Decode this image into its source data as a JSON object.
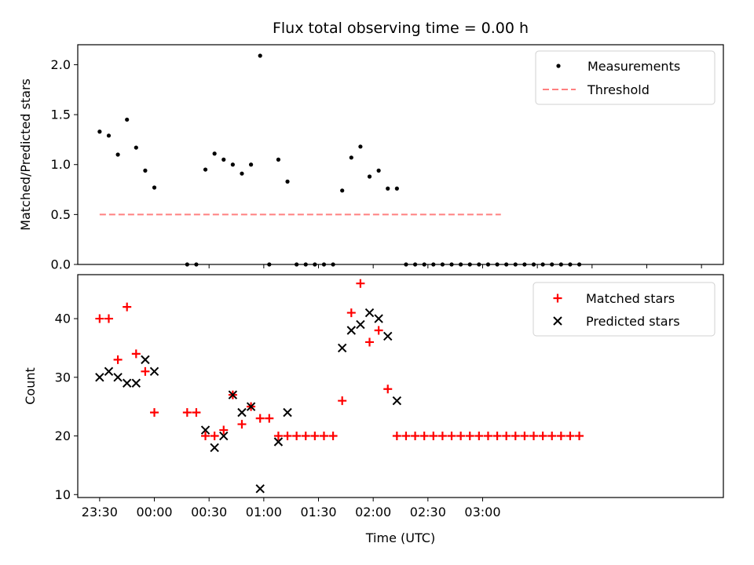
{
  "chart_data": [
    {
      "type": "scatter",
      "title": "Flux total observing time = 0.00 h",
      "xlabel": "",
      "ylabel": "Matched/Predicted stars",
      "xlim": [
        -42,
        312
      ],
      "ylim": [
        0,
        2.2
      ],
      "yticks": [
        0.0,
        0.5,
        1.0,
        1.5,
        2.0
      ],
      "ytick_labels": [
        "0.0",
        "0.5",
        "1.0",
        "1.5",
        "2.0"
      ],
      "xticks_minutes": [
        30,
        60,
        90,
        120,
        150,
        180,
        210,
        240,
        270,
        300
      ],
      "legend_position": "top-right",
      "colors": {
        "measurements": "#000000",
        "threshold": "#ff8080"
      },
      "series": [
        {
          "name": "Measurements",
          "x_minutes": [
            -30,
            -25,
            -20,
            -15,
            -10,
            -5,
            0,
            18,
            23,
            28,
            33,
            38,
            43,
            48,
            53,
            58,
            63,
            68,
            73,
            78,
            83,
            88,
            93,
            98,
            103,
            108,
            113,
            118,
            123,
            128,
            133,
            138,
            143,
            148,
            153,
            158,
            163,
            168,
            173,
            178,
            183,
            188,
            193,
            198,
            203,
            208,
            213,
            218,
            223,
            228,
            233
          ],
          "values": [
            1.33,
            1.29,
            1.1,
            1.45,
            1.17,
            0.94,
            0.77,
            0.0,
            0.0,
            0.95,
            1.11,
            1.05,
            1.0,
            0.91,
            1.0,
            2.09,
            0.0,
            1.05,
            0.83,
            0.0,
            0.0,
            0.0,
            0.0,
            0.0,
            0.74,
            1.07,
            1.18,
            0.88,
            0.94,
            0.76,
            0.76,
            0.0,
            0.0,
            0.0,
            0.0,
            0.0,
            0.0,
            0.0,
            0.0,
            0.0,
            0.0,
            0.0,
            0.0,
            0.0,
            0.0,
            0.0,
            0.0,
            0.0,
            0.0,
            0.0,
            0.0
          ]
        },
        {
          "name": "Threshold",
          "x_minutes": [
            -30,
            190
          ],
          "values": [
            0.5,
            0.5
          ]
        }
      ]
    },
    {
      "type": "scatter",
      "title": "",
      "xlabel": "Time (UTC)",
      "ylabel": "Count",
      "xlim": [
        -42,
        312
      ],
      "ylim": [
        9.5,
        47.5
      ],
      "yticks": [
        10,
        20,
        30,
        40
      ],
      "ytick_labels": [
        "10",
        "20",
        "30",
        "40"
      ],
      "xticks_minutes": [
        -30,
        0,
        30,
        60,
        90,
        120,
        150,
        180
      ],
      "xtick_labels": [
        "23:30",
        "00:00",
        "00:30",
        "01:00",
        "01:30",
        "02:00",
        "02:30",
        "03:00"
      ],
      "legend_position": "top-right",
      "colors": {
        "matched": "#ff0000",
        "predicted": "#000000"
      },
      "series": [
        {
          "name": "Matched stars",
          "x_minutes": [
            -30,
            -25,
            -20,
            -15,
            -10,
            -5,
            0,
            18,
            23,
            28,
            33,
            38,
            43,
            48,
            53,
            58,
            63,
            68,
            73,
            78,
            83,
            88,
            93,
            98,
            103,
            108,
            113,
            118,
            123,
            128,
            133,
            138,
            143,
            148,
            153,
            158,
            163,
            168,
            173,
            178,
            183,
            188,
            193,
            198,
            203,
            208,
            213,
            218,
            223,
            228,
            233
          ],
          "values": [
            40,
            40,
            33,
            42,
            34,
            31,
            24,
            24,
            24,
            20,
            20,
            21,
            27,
            22,
            25,
            23,
            23,
            20,
            20,
            20,
            20,
            20,
            20,
            20,
            26,
            41,
            46,
            36,
            38,
            28,
            20,
            20,
            20,
            20,
            20,
            20,
            20,
            20,
            20,
            20,
            20,
            20,
            20,
            20,
            20,
            20,
            20,
            20,
            20,
            20,
            20
          ]
        },
        {
          "name": "Predicted stars",
          "x_minutes": [
            -30,
            -25,
            -20,
            -15,
            -10,
            -5,
            0,
            28,
            33,
            38,
            43,
            48,
            53,
            58,
            68,
            73,
            103,
            108,
            113,
            118,
            123,
            128,
            133
          ],
          "values": [
            30,
            31,
            30,
            29,
            29,
            33,
            31,
            21,
            18,
            20,
            27,
            24,
            25,
            11,
            19,
            24,
            35,
            38,
            39,
            41,
            40,
            37,
            26
          ]
        }
      ]
    }
  ]
}
